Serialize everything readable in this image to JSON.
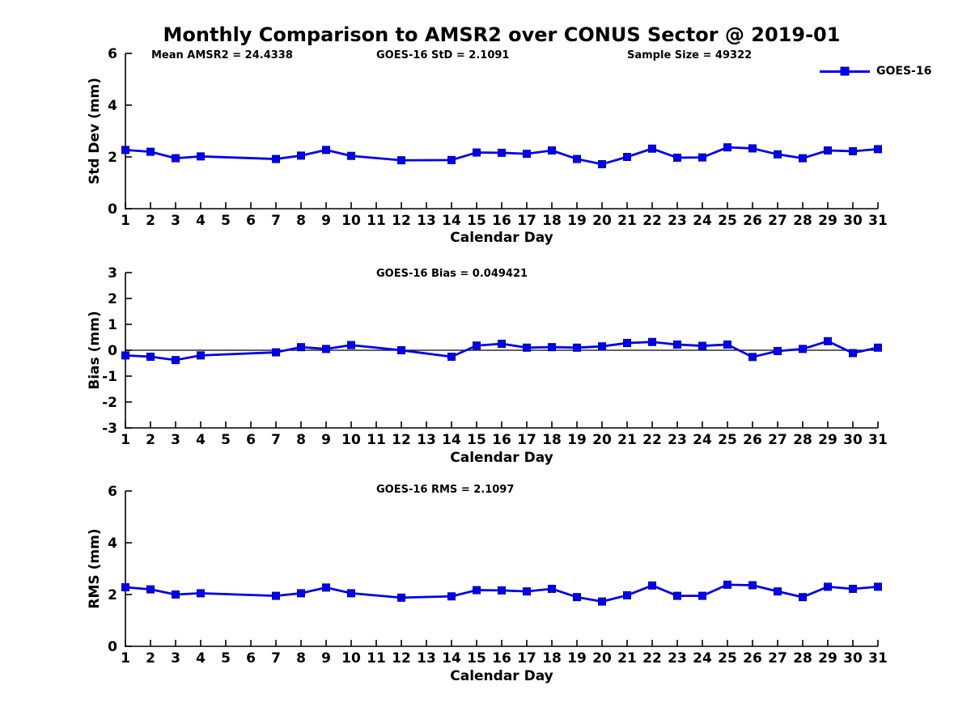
{
  "page": {
    "title": "Monthly Comparison to AMSR2 over CONUS Sector @ 2019-01"
  },
  "annotations": {
    "mean_amsr2": "Mean AMSR2 = 24.4338",
    "goes16_std": "GOES-16 StD = 2.1091",
    "sample_size": "Sample Size = 49322",
    "goes16_bias": "GOES-16 Bias = 0.049421",
    "goes16_rms": "GOES-16 RMS = 2.1097"
  },
  "legend": {
    "series_label": "GOES-16",
    "position": "top-right"
  },
  "colors": {
    "series": "#0000EE",
    "marker_edge": "#0000A8",
    "axis": "#000000",
    "zero_line": "#000000",
    "background": "#ffffff"
  },
  "chart_data": [
    {
      "type": "line",
      "id": "std-dev",
      "ylabel": "Std Dev (mm)",
      "xlabel": "Calendar Day",
      "ylim": [
        0,
        6
      ],
      "yticks": [
        0,
        2,
        4,
        6
      ],
      "xlim": [
        1,
        31
      ],
      "xticks": [
        1,
        2,
        3,
        4,
        5,
        6,
        7,
        8,
        9,
        10,
        11,
        12,
        13,
        14,
        15,
        16,
        17,
        18,
        19,
        20,
        21,
        22,
        23,
        24,
        25,
        26,
        27,
        28,
        29,
        30,
        31
      ],
      "grid": false,
      "zero_line": false,
      "series": [
        {
          "name": "GOES-16",
          "x": [
            1,
            2,
            3,
            4,
            7,
            8,
            9,
            10,
            12,
            14,
            15,
            16,
            17,
            18,
            19,
            20,
            21,
            22,
            23,
            24,
            25,
            26,
            27,
            28,
            29,
            30,
            31
          ],
          "y": [
            2.27,
            2.2,
            1.95,
            2.02,
            1.92,
            2.05,
            2.27,
            2.04,
            1.87,
            1.88,
            2.17,
            2.16,
            2.12,
            2.25,
            1.92,
            1.72,
            2.0,
            2.32,
            1.97,
            1.98,
            2.37,
            2.33,
            2.1,
            1.95,
            2.25,
            2.22,
            2.3
          ]
        }
      ]
    },
    {
      "type": "line",
      "id": "bias",
      "ylabel": "Bias (mm)",
      "xlabel": "Calendar Day",
      "ylim": [
        -3,
        3
      ],
      "yticks": [
        -3,
        -2,
        -1,
        0,
        1,
        2,
        3
      ],
      "xlim": [
        1,
        31
      ],
      "xticks": [
        1,
        2,
        3,
        4,
        5,
        6,
        7,
        8,
        9,
        10,
        11,
        12,
        13,
        14,
        15,
        16,
        17,
        18,
        19,
        20,
        21,
        22,
        23,
        24,
        25,
        26,
        27,
        28,
        29,
        30,
        31
      ],
      "grid": false,
      "zero_line": true,
      "series": [
        {
          "name": "GOES-16",
          "x": [
            1,
            2,
            3,
            4,
            7,
            8,
            9,
            10,
            12,
            14,
            15,
            16,
            17,
            18,
            19,
            20,
            21,
            22,
            23,
            24,
            25,
            26,
            27,
            28,
            29,
            30,
            31
          ],
          "y": [
            -0.2,
            -0.25,
            -0.38,
            -0.2,
            -0.08,
            0.12,
            0.05,
            0.2,
            0.0,
            -0.25,
            0.18,
            0.25,
            0.1,
            0.12,
            0.1,
            0.15,
            0.28,
            0.32,
            0.22,
            0.17,
            0.22,
            -0.26,
            -0.03,
            0.05,
            0.35,
            -0.11,
            0.1
          ]
        }
      ]
    },
    {
      "type": "line",
      "id": "rms",
      "ylabel": "RMS (mm)",
      "xlabel": "Calendar Day",
      "ylim": [
        0,
        6
      ],
      "yticks": [
        0,
        2,
        4,
        6
      ],
      "xlim": [
        1,
        31
      ],
      "xticks": [
        1,
        2,
        3,
        4,
        5,
        6,
        7,
        8,
        9,
        10,
        11,
        12,
        13,
        14,
        15,
        16,
        17,
        18,
        19,
        20,
        21,
        22,
        23,
        24,
        25,
        26,
        27,
        28,
        29,
        30,
        31
      ],
      "grid": false,
      "zero_line": false,
      "series": [
        {
          "name": "GOES-16",
          "x": [
            1,
            2,
            3,
            4,
            7,
            8,
            9,
            10,
            12,
            14,
            15,
            16,
            17,
            18,
            19,
            20,
            21,
            22,
            23,
            24,
            25,
            26,
            27,
            28,
            29,
            30,
            31
          ],
          "y": [
            2.28,
            2.2,
            2.0,
            2.05,
            1.95,
            2.05,
            2.27,
            2.05,
            1.88,
            1.93,
            2.17,
            2.16,
            2.12,
            2.22,
            1.9,
            1.73,
            1.97,
            2.35,
            1.95,
            1.95,
            2.38,
            2.36,
            2.12,
            1.9,
            2.3,
            2.22,
            2.3
          ]
        }
      ]
    }
  ]
}
